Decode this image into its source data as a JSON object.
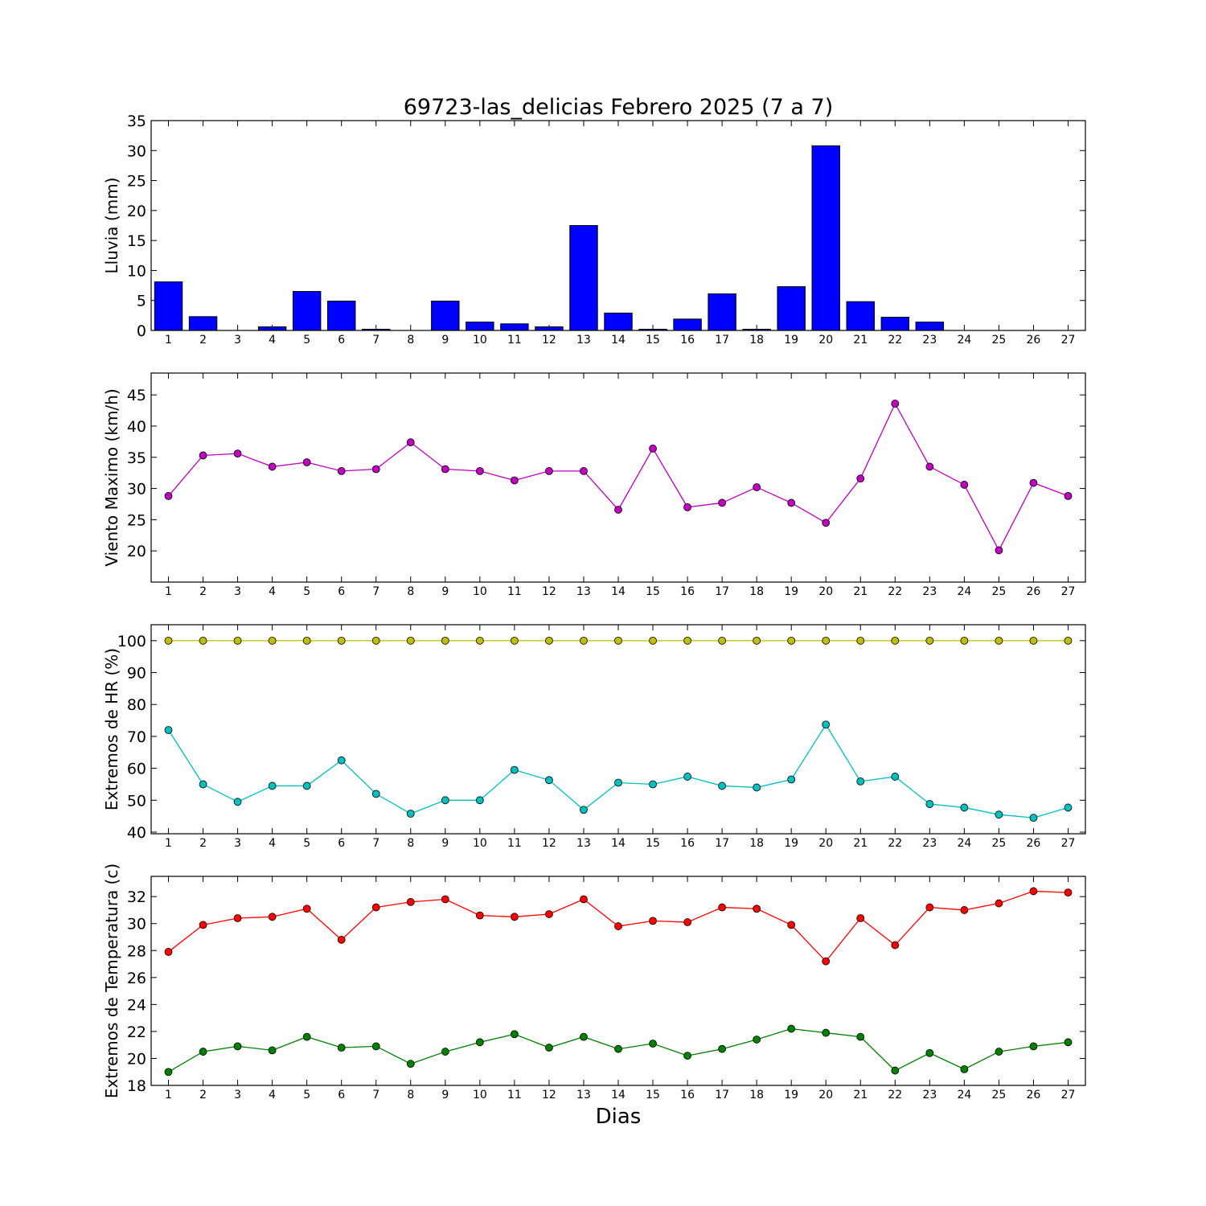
{
  "figure": {
    "title": "69723-las_delicias Febrero 2025  (7 a 7)",
    "xlabel": "Dias"
  },
  "colors": {
    "rain": "#0000ff",
    "wind": "#bf00bf",
    "hr_max": "#bfbf00",
    "hr_min": "#00bfbf",
    "temp_max": "#ff0000",
    "temp_min": "#008000"
  },
  "chart_data": [
    {
      "type": "bar",
      "ylabel": "Lluvia (mm)",
      "ylim": [
        0,
        35
      ],
      "yticks": [
        0,
        5,
        10,
        15,
        20,
        25,
        30,
        35
      ],
      "x": [
        1,
        2,
        3,
        4,
        5,
        6,
        7,
        8,
        9,
        10,
        11,
        12,
        13,
        14,
        15,
        16,
        17,
        18,
        19,
        20,
        21,
        22,
        23,
        24,
        25,
        26,
        27
      ],
      "series": [
        {
          "color_key": "rain",
          "values": [
            8.1,
            2.3,
            0,
            0.6,
            6.5,
            4.9,
            0.2,
            0,
            4.9,
            1.4,
            1.1,
            0.6,
            17.5,
            2.9,
            0.2,
            1.9,
            6.1,
            0.2,
            7.3,
            30.8,
            4.8,
            2.2,
            1.4,
            0,
            0,
            0,
            0
          ]
        }
      ],
      "grid": false
    },
    {
      "type": "line",
      "ylabel": "Viento Maximo (km/h)",
      "ylim": [
        15,
        48.5
      ],
      "yticks": [
        20,
        25,
        30,
        35,
        40,
        45
      ],
      "x": [
        1,
        2,
        3,
        4,
        5,
        6,
        7,
        8,
        9,
        10,
        11,
        12,
        13,
        14,
        15,
        16,
        17,
        18,
        19,
        20,
        21,
        22,
        23,
        24,
        25,
        26,
        27
      ],
      "series": [
        {
          "color_key": "wind",
          "values": [
            28.8,
            35.3,
            35.6,
            33.5,
            34.2,
            32.8,
            33.1,
            37.4,
            33.1,
            32.8,
            31.3,
            32.8,
            32.8,
            26.6,
            36.4,
            27.0,
            27.7,
            30.2,
            27.7,
            24.5,
            31.6,
            43.6,
            33.5,
            30.6,
            20.1,
            30.9,
            28.8
          ]
        }
      ],
      "grid": false
    },
    {
      "type": "line",
      "ylabel": "Extremos de HR (%)",
      "ylim": [
        39.5,
        105
      ],
      "yticks": [
        40,
        50,
        60,
        70,
        80,
        90,
        100
      ],
      "x": [
        1,
        2,
        3,
        4,
        5,
        6,
        7,
        8,
        9,
        10,
        11,
        12,
        13,
        14,
        15,
        16,
        17,
        18,
        19,
        20,
        21,
        22,
        23,
        24,
        25,
        26,
        27
      ],
      "series": [
        {
          "color_key": "hr_max",
          "values": [
            100,
            100,
            100,
            100,
            100,
            100,
            100,
            100,
            100,
            100,
            100,
            100,
            100,
            100,
            100,
            100,
            100,
            100,
            100,
            100,
            100,
            100,
            100,
            100,
            100,
            100,
            100
          ]
        },
        {
          "color_key": "hr_min",
          "values": [
            72,
            55,
            49.5,
            54.5,
            54.5,
            62.5,
            52,
            45.8,
            50,
            50,
            59.5,
            56.3,
            47,
            55.5,
            55,
            57.4,
            54.5,
            54,
            56.5,
            73.7,
            55.9,
            57.4,
            48.8,
            47.7,
            45.5,
            44.5,
            47.7
          ]
        }
      ],
      "grid": false
    },
    {
      "type": "line",
      "ylabel": "Extremos de Temperatura (c)",
      "ylim": [
        18,
        33.5
      ],
      "yticks": [
        18,
        20,
        22,
        24,
        26,
        28,
        30,
        32
      ],
      "x": [
        1,
        2,
        3,
        4,
        5,
        6,
        7,
        8,
        9,
        10,
        11,
        12,
        13,
        14,
        15,
        16,
        17,
        18,
        19,
        20,
        21,
        22,
        23,
        24,
        25,
        26,
        27
      ],
      "series": [
        {
          "color_key": "temp_max",
          "values": [
            27.9,
            29.9,
            30.4,
            30.5,
            31.1,
            28.8,
            31.2,
            31.6,
            31.8,
            30.6,
            30.5,
            30.7,
            31.8,
            29.8,
            30.2,
            30.1,
            31.2,
            31.1,
            29.9,
            27.2,
            30.4,
            28.4,
            31.2,
            31.0,
            31.5,
            32.4,
            32.3
          ]
        },
        {
          "color_key": "temp_min",
          "values": [
            19.0,
            20.5,
            20.9,
            20.6,
            21.6,
            20.8,
            20.9,
            19.6,
            20.5,
            21.2,
            21.8,
            20.8,
            21.6,
            20.7,
            21.1,
            20.2,
            20.7,
            21.4,
            22.2,
            21.9,
            21.6,
            19.1,
            20.4,
            19.2,
            20.5,
            20.9,
            21.2
          ]
        }
      ],
      "grid": false
    }
  ]
}
